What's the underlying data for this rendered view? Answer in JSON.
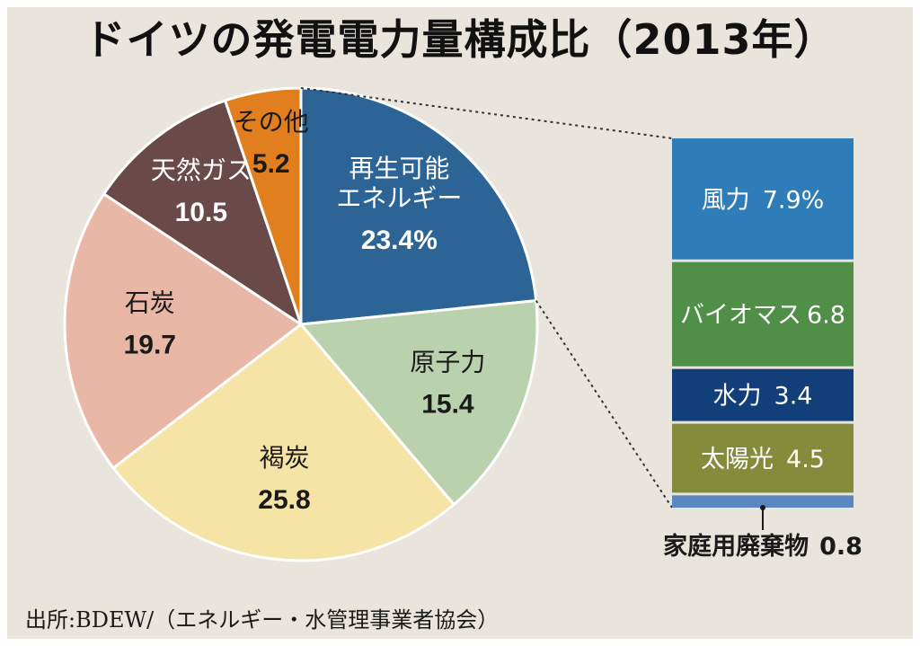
{
  "title": "ドイツの発電電力量構成比（2013年）",
  "source": "出所:BDEW/（エネルギー・水管理事業者協会）",
  "colors": {
    "background": "#e9e4dc",
    "frame": "#ffffff"
  },
  "chart_data": [
    {
      "type": "pie",
      "title": "ドイツの発電電力量構成比（2013年）",
      "unit": "%",
      "start": "12 o'clock",
      "direction": "clockwise",
      "slices": [
        {
          "key": "renewable",
          "label_lines": [
            "再生可能",
            "エネルギー"
          ],
          "value": 23.4,
          "display": "23.4%",
          "color": "#2c6496",
          "text_tone": "light"
        },
        {
          "key": "nuclear",
          "label_lines": [
            "原子力"
          ],
          "value": 15.4,
          "display": "15.4",
          "color": "#b9d1ac",
          "text_tone": "dark"
        },
        {
          "key": "lignite",
          "label_lines": [
            "褐炭"
          ],
          "value": 25.8,
          "display": "25.8",
          "color": "#f6e3a6",
          "text_tone": "dark"
        },
        {
          "key": "coal",
          "label_lines": [
            "石炭"
          ],
          "value": 19.7,
          "display": "19.7",
          "color": "#e9b7a6",
          "text_tone": "dark"
        },
        {
          "key": "gas",
          "label_lines": [
            "天然ガス"
          ],
          "value": 10.5,
          "display": "10.5",
          "color": "#6a4a48",
          "text_tone": "light"
        },
        {
          "key": "other",
          "label_lines": [
            "その他"
          ],
          "value": 5.2,
          "display": "5.2",
          "color": "#e17f1e",
          "text_tone": "dark"
        }
      ]
    },
    {
      "type": "bar",
      "orientation": "stacked-vertical",
      "breakdown_of": "再生可能エネルギー",
      "unit": "%",
      "segments": [
        {
          "key": "wind",
          "label": "風力",
          "value": 7.9,
          "display": "7.9%",
          "color": "#2e7db8"
        },
        {
          "key": "biomass",
          "label": "バイオマス",
          "value": 6.8,
          "display": "6.8",
          "color": "#4f8f48"
        },
        {
          "key": "hydro",
          "label": "水力",
          "value": 3.4,
          "display": "3.4",
          "color": "#123f7a"
        },
        {
          "key": "solar",
          "label": "太陽光",
          "value": 4.5,
          "display": "4.5",
          "color": "#848c3c"
        },
        {
          "key": "waste",
          "label": "家庭用廃棄物",
          "value": 0.8,
          "display": "0.8",
          "color": "#5a86c4"
        }
      ]
    }
  ]
}
